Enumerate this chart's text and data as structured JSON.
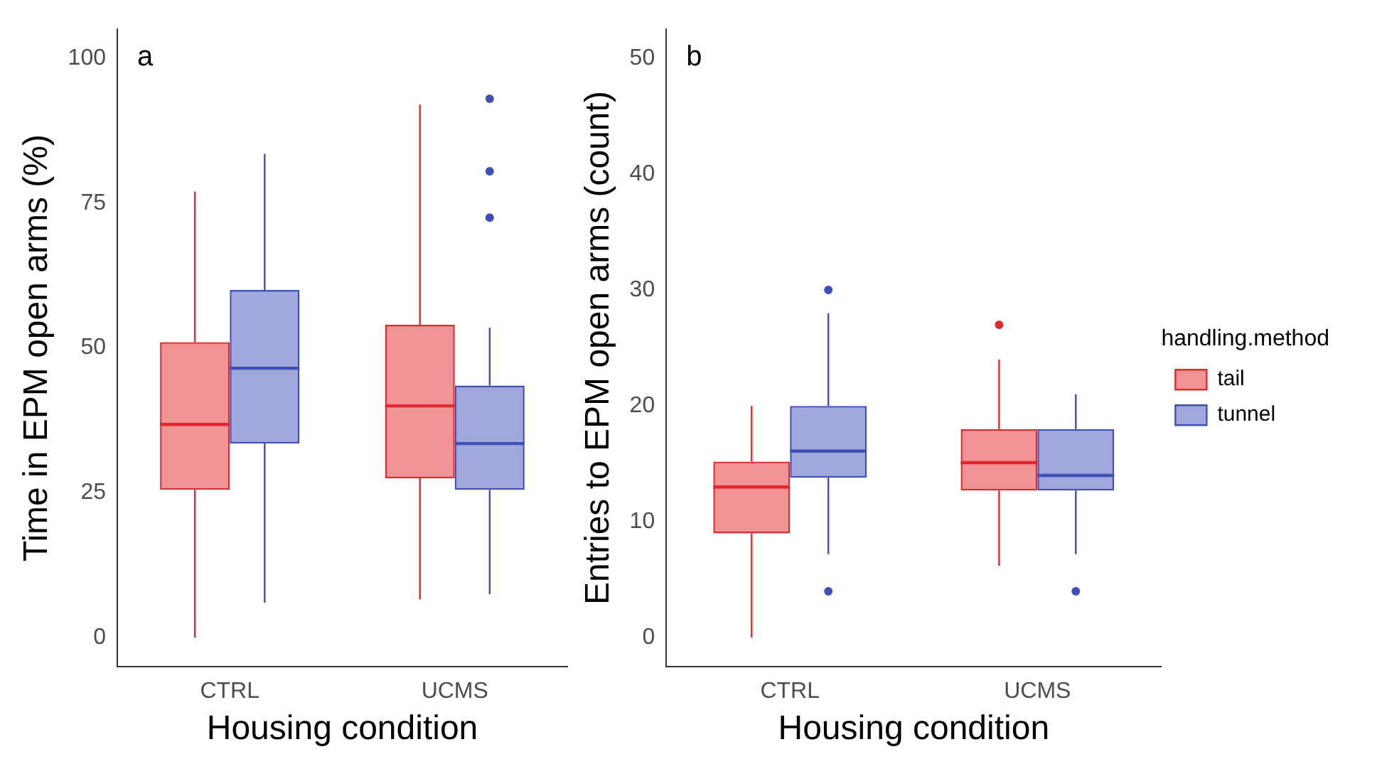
{
  "chart_data": [
    {
      "type": "box",
      "annotations": [
        "a"
      ],
      "xlabel": "Housing condition",
      "ylabel": "Time in EPM open arms (%)",
      "categories": [
        "CTRL",
        "UCMS"
      ],
      "ylim": [
        -5,
        105
      ],
      "yticks": [
        0,
        25,
        50,
        75,
        100
      ],
      "grid": false,
      "series": [
        {
          "color": "#e0282e",
          "boxes": [
            {
              "low": 0,
              "q1": 25.5,
              "median": 36.8,
              "q3": 51,
              "high": 77
            },
            {
              "low": 6.6,
              "q1": 27.5,
              "median": 40,
              "q3": 54,
              "high": 92
            }
          ]
        },
        {
          "color": "#3f4fb8",
          "boxes": [
            {
              "low": 6,
              "q1": 33.5,
              "median": 46.5,
              "q3": 60,
              "high": 83.5
            },
            {
              "low": 7.5,
              "q1": 25.5,
              "median": 33.5,
              "q3": 43.5,
              "high": 53.5,
              "outliers": [
                72.5,
                80.5,
                93
              ]
            }
          ]
        }
      ]
    },
    {
      "type": "box",
      "annotations": [
        "b"
      ],
      "xlabel": "Housing condition",
      "ylabel": "Entries to EPM open arms (count)",
      "legend_title": "handling.method",
      "legend": "right",
      "categories": [
        "CTRL",
        "UCMS"
      ],
      "ylim": [
        -2.5,
        52.5
      ],
      "yticks": [
        0,
        10,
        20,
        30,
        40,
        50
      ],
      "grid": false,
      "series": [
        {
          "name": "tail",
          "color": "#e0282e",
          "boxes": [
            {
              "low": 0,
              "q1": 9,
              "median": 13,
              "q3": 15.2,
              "high": 20
            },
            {
              "low": 6.2,
              "q1": 12.7,
              "median": 15.1,
              "q3": 18,
              "high": 24,
              "outliers": [
                27
              ]
            }
          ]
        },
        {
          "name": "tunnel",
          "color": "#3f4fb8",
          "boxes": [
            {
              "low": 7.2,
              "q1": 13.8,
              "median": 16.1,
              "q3": 20,
              "high": 28,
              "outliers": [
                4,
                30
              ]
            },
            {
              "low": 7.2,
              "q1": 12.7,
              "median": 14,
              "q3": 18,
              "high": 21,
              "outliers": [
                4
              ]
            }
          ]
        }
      ]
    }
  ]
}
